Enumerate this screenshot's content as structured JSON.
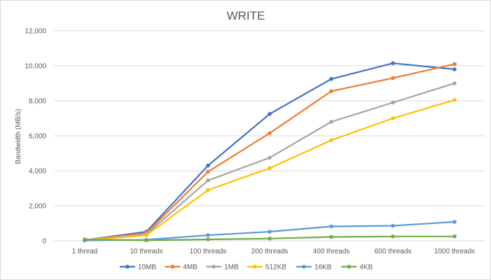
{
  "chart_data": {
    "type": "line",
    "title": "WRITE",
    "xlabel": "",
    "ylabel": "Bandwidth (MB/s)",
    "ylim": [
      0,
      12000
    ],
    "yticks": [
      "0",
      "2,000",
      "4,000",
      "6,000",
      "8,000",
      "10,000",
      "12,000"
    ],
    "categories": [
      "1 thread",
      "10 threads",
      "100 threads",
      "200 threads",
      "400 threads",
      "600 threads",
      "1000 threads"
    ],
    "grid": true,
    "legend_position": "bottom",
    "series": [
      {
        "name": "10MB",
        "color": "#4472C4",
        "values": [
          40,
          520,
          4300,
          7250,
          9250,
          10150,
          9800
        ]
      },
      {
        "name": "4MB",
        "color": "#ED7D31",
        "values": [
          35,
          450,
          3950,
          6150,
          8550,
          9300,
          10100
        ]
      },
      {
        "name": "1MB",
        "color": "#A5A5A5",
        "values": [
          30,
          380,
          3450,
          4750,
          6800,
          7900,
          9000
        ]
      },
      {
        "name": "512KB",
        "color": "#FFC000",
        "values": [
          25,
          320,
          2900,
          4150,
          5750,
          7000,
          8050
        ]
      },
      {
        "name": "16KB",
        "color": "#5B9BD5",
        "values": [
          20,
          60,
          320,
          520,
          820,
          860,
          1080
        ]
      },
      {
        "name": "4KB",
        "color": "#70AD47",
        "values": [
          80,
          30,
          80,
          130,
          220,
          250,
          250
        ]
      }
    ]
  }
}
